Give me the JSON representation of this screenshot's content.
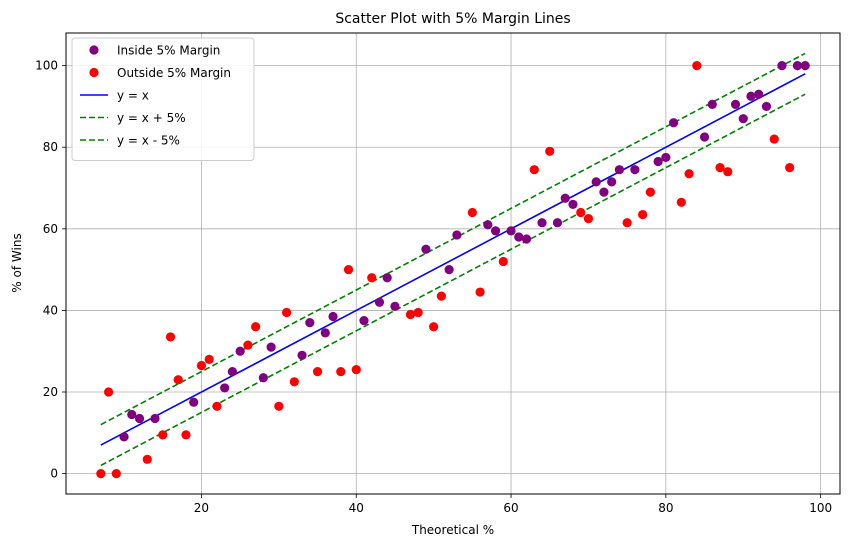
{
  "chart_data": {
    "type": "scatter",
    "title": "Scatter Plot with 5% Margin Lines",
    "xlabel": "Theoretical %",
    "ylabel": "% of Wins",
    "xlim": [
      2.5,
      102.5
    ],
    "ylim": [
      -5,
      108
    ],
    "xticks": [
      20,
      40,
      60,
      80,
      100
    ],
    "yticks": [
      0,
      20,
      40,
      60,
      80,
      100
    ],
    "grid": true,
    "legend_position": "top-left",
    "series": [
      {
        "name": "Inside 5% Margin",
        "kind": "scatter",
        "color": "#800080",
        "points": [
          [
            10,
            9
          ],
          [
            11,
            14.5
          ],
          [
            12,
            13.5
          ],
          [
            14,
            13.5
          ],
          [
            19,
            17.5
          ],
          [
            23,
            21
          ],
          [
            24,
            25
          ],
          [
            25,
            30
          ],
          [
            28,
            23.5
          ],
          [
            29,
            31
          ],
          [
            33,
            29
          ],
          [
            34,
            37
          ],
          [
            36,
            34.5
          ],
          [
            37,
            38.5
          ],
          [
            41,
            37.5
          ],
          [
            43,
            42
          ],
          [
            44,
            48
          ],
          [
            45,
            41
          ],
          [
            49,
            55
          ],
          [
            52,
            50
          ],
          [
            53,
            58.5
          ],
          [
            57,
            61
          ],
          [
            58,
            59.5
          ],
          [
            60,
            59.5
          ],
          [
            61,
            58
          ],
          [
            62,
            57.5
          ],
          [
            64,
            61.5
          ],
          [
            66,
            61.5
          ],
          [
            67,
            67.5
          ],
          [
            68,
            66
          ],
          [
            71,
            71.5
          ],
          [
            72,
            69
          ],
          [
            73,
            71.5
          ],
          [
            74,
            74.5
          ],
          [
            76,
            74.5
          ],
          [
            79,
            76.5
          ],
          [
            80,
            77.5
          ],
          [
            81,
            86
          ],
          [
            85,
            82.5
          ],
          [
            86,
            90.5
          ],
          [
            89,
            90.5
          ],
          [
            90,
            87
          ],
          [
            91,
            92.5
          ],
          [
            92,
            93
          ],
          [
            93,
            90
          ],
          [
            95,
            100
          ],
          [
            97,
            100
          ],
          [
            98,
            100
          ]
        ]
      },
      {
        "name": "Outside 5% Margin",
        "kind": "scatter",
        "color": "#ff0000",
        "points": [
          [
            7,
            0
          ],
          [
            8,
            20
          ],
          [
            9,
            0
          ],
          [
            13,
            3.5
          ],
          [
            15,
            9.5
          ],
          [
            16,
            33.5
          ],
          [
            17,
            23
          ],
          [
            18,
            9.5
          ],
          [
            20,
            26.5
          ],
          [
            21,
            28
          ],
          [
            22,
            16.5
          ],
          [
            26,
            31.5
          ],
          [
            27,
            36
          ],
          [
            30,
            16.5
          ],
          [
            31,
            39.5
          ],
          [
            32,
            22.5
          ],
          [
            35,
            25
          ],
          [
            38,
            25
          ],
          [
            39,
            50
          ],
          [
            40,
            25.5
          ],
          [
            42,
            48
          ],
          [
            47,
            39
          ],
          [
            48,
            39.5
          ],
          [
            50,
            36
          ],
          [
            51,
            43.5
          ],
          [
            55,
            64
          ],
          [
            56,
            44.5
          ],
          [
            59,
            52
          ],
          [
            63,
            74.5
          ],
          [
            65,
            79
          ],
          [
            69,
            64
          ],
          [
            70,
            62.5
          ],
          [
            75,
            61.5
          ],
          [
            77,
            63.5
          ],
          [
            78,
            69
          ],
          [
            82,
            66.5
          ],
          [
            83,
            73.5
          ],
          [
            84,
            100
          ],
          [
            87,
            75
          ],
          [
            88,
            74
          ],
          [
            94,
            82
          ],
          [
            96,
            75
          ]
        ]
      },
      {
        "name": "y = x",
        "kind": "line",
        "color": "#0000ff",
        "dash": "solid",
        "points": [
          [
            7,
            7
          ],
          [
            98,
            98
          ]
        ]
      },
      {
        "name": "y = x + 5%",
        "kind": "line",
        "color": "#008000",
        "dash": "dashed",
        "points": [
          [
            7,
            12
          ],
          [
            98,
            103
          ]
        ]
      },
      {
        "name": "y = x - 5%",
        "kind": "line",
        "color": "#008000",
        "dash": "dashed",
        "points": [
          [
            7,
            2
          ],
          [
            98,
            93
          ]
        ]
      }
    ]
  }
}
